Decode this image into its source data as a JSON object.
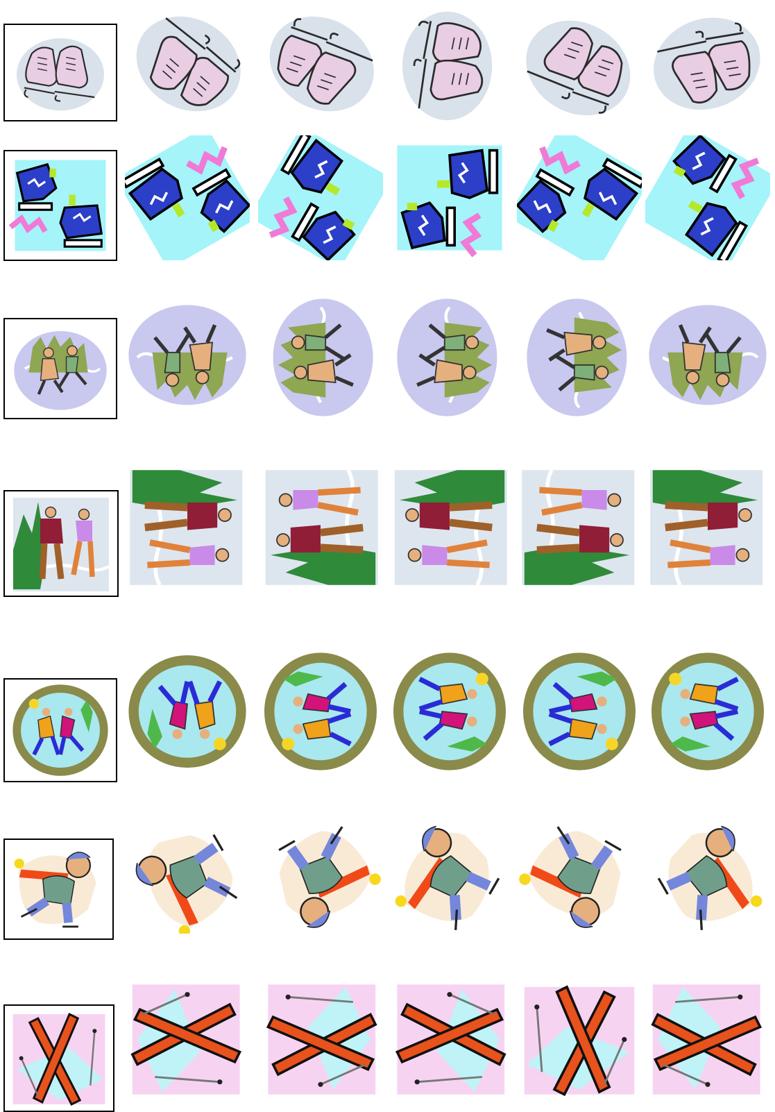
{
  "palette": {
    "skate_pink": "#e9cde3",
    "skate_outline": "#2b2b2b",
    "frost": "#b9c9d8",
    "boot_blue": "#2c3fc8",
    "ice_cyan": "#7ff0f8",
    "zigzag_pink": "#f07ad6",
    "lavender_swirl": "#c9c8ee",
    "tree_green": "#8fa652",
    "skin": "#e6b07e",
    "jacket_maroon": "#8f1e36",
    "jacket_purple": "#c98ae8",
    "rink_olive": "#8a8a4a",
    "rink_cyan": "#a9e8ee",
    "figure_magenta": "#d2137a",
    "kid_teal": "#6f9f8a",
    "kid_blue": "#7487da",
    "scarf_red": "#f04a18",
    "ski_orange": "#e8521c",
    "pastel_pink": "#f5c8ef",
    "pastel_cyan": "#bff3f8"
  },
  "rows": [
    {
      "name": "ice-skates",
      "icon": "ice-skates-icon",
      "tiles": [
        {
          "r": 0,
          "f": 1
        },
        {
          "r": -150,
          "f": 1
        },
        {
          "r": 150,
          "f": -1
        },
        {
          "r": 90,
          "f": 1
        },
        {
          "r": -30,
          "f": -1
        },
        {
          "r": 160,
          "f": 1
        }
      ]
    },
    {
      "name": "hockey-skates",
      "icon": "blue-skates-icon",
      "tiles": [
        {
          "r": 0,
          "f": 1
        },
        {
          "r": 150,
          "f": 1
        },
        {
          "r": -120,
          "f": -1
        },
        {
          "r": -90,
          "f": 1
        },
        {
          "r": 150,
          "f": -1
        },
        {
          "r": 60,
          "f": -1
        }
      ]
    },
    {
      "name": "skating-couple-swirl",
      "icon": "couple-skaters-icon",
      "tiles": [
        {
          "r": 0,
          "f": 1
        },
        {
          "r": 180,
          "f": 1
        },
        {
          "r": -90,
          "f": 1
        },
        {
          "r": -90,
          "f": -1
        },
        {
          "r": 90,
          "f": 1
        },
        {
          "r": 180,
          "f": -1
        }
      ]
    },
    {
      "name": "skating-couple-trees",
      "icon": "couple-trees-icon",
      "tiles": [
        {
          "r": 0,
          "f": 1
        },
        {
          "r": 90,
          "f": 1
        },
        {
          "r": -90,
          "f": 1
        },
        {
          "r": 90,
          "f": -1
        },
        {
          "r": -90,
          "f": -1
        },
        {
          "r": 90,
          "f": 1
        }
      ]
    },
    {
      "name": "rink-skaters",
      "icon": "rink-skaters-icon",
      "tiles": [
        {
          "r": 0,
          "f": 1
        },
        {
          "r": 180,
          "f": 1
        },
        {
          "r": -90,
          "f": 1
        },
        {
          "r": 90,
          "f": 1
        },
        {
          "r": -90,
          "f": -1
        },
        {
          "r": 90,
          "f": -1
        }
      ]
    },
    {
      "name": "kid-skater",
      "icon": "kid-skater-icon",
      "tiles": [
        {
          "r": 0,
          "f": 1
        },
        {
          "r": -120,
          "f": 1
        },
        {
          "r": 150,
          "f": 1
        },
        {
          "r": -60,
          "f": 1
        },
        {
          "r": 150,
          "f": -1
        },
        {
          "r": -60,
          "f": -1
        }
      ]
    },
    {
      "name": "crossed-skis",
      "icon": "crossed-skis-icon",
      "tiles": [
        {
          "r": 0,
          "f": 1
        },
        {
          "r": 90,
          "f": 1
        },
        {
          "r": -90,
          "f": 1
        },
        {
          "r": 90,
          "f": -1
        },
        {
          "r": 0,
          "f": -1
        },
        {
          "r": -90,
          "f": -1
        }
      ]
    }
  ]
}
